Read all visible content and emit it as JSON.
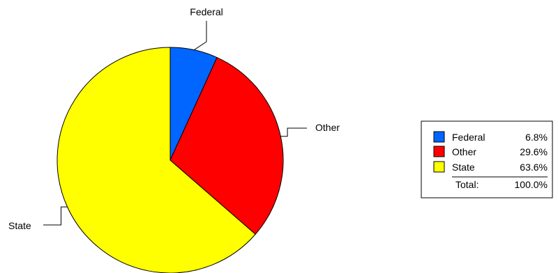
{
  "chart_data": {
    "type": "pie",
    "slices": [
      {
        "label": "Federal",
        "value": 6.8,
        "pct_label": "6.8%",
        "color": "#0066ff"
      },
      {
        "label": "Other",
        "value": 29.6,
        "pct_label": "29.6%",
        "color": "#ff0000"
      },
      {
        "label": "State",
        "value": 63.6,
        "pct_label": "63.6%",
        "color": "#ffff00"
      }
    ],
    "legend": {
      "position": "right",
      "total_label": "Total:",
      "total_value": "100.0%"
    }
  }
}
